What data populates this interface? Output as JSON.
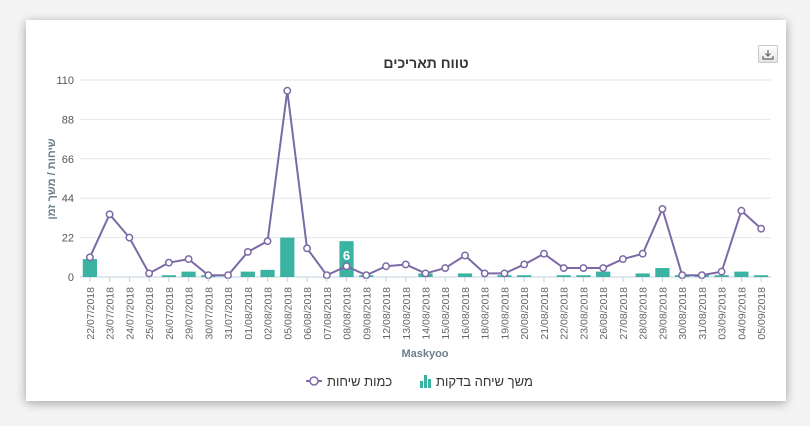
{
  "chart_data": {
    "type": "bar",
    "title": "טווח תאריכים",
    "xlabel": "Maskyoo",
    "ylabel": "שיחות / משך זמן",
    "ylim": [
      0,
      110
    ],
    "yticks": [
      0,
      22,
      44,
      66,
      88,
      110
    ],
    "grid": true,
    "legend": "bottom-center",
    "categories": [
      "22/07/2018",
      "23/07/2018",
      "24/07/2018",
      "25/07/2018",
      "26/07/2018",
      "29/07/2018",
      "30/07/2018",
      "31/07/2018",
      "01/08/2018",
      "02/08/2018",
      "05/08/2018",
      "06/08/2018",
      "07/08/2018",
      "08/08/2018",
      "09/08/2018",
      "12/08/2018",
      "13/08/2018",
      "14/08/2018",
      "15/08/2018",
      "16/08/2018",
      "18/08/2018",
      "19/08/2018",
      "20/08/2018",
      "21/08/2018",
      "22/08/2018",
      "23/08/2018",
      "26/08/2018",
      "27/08/2018",
      "28/08/2018",
      "29/08/2018",
      "30/08/2018",
      "31/08/2018",
      "03/09/2018",
      "04/09/2018",
      "05/09/2018"
    ],
    "series": [
      {
        "name": "משך שיחה בדקות",
        "type": "bar",
        "color": "#3bb3a3",
        "values": [
          10,
          0,
          0,
          0,
          1,
          3,
          1,
          0,
          3,
          4,
          22,
          0,
          0,
          20,
          1,
          0,
          0,
          2,
          0,
          2,
          0,
          1,
          1,
          0,
          1,
          1,
          3,
          0,
          2,
          5,
          1,
          1,
          1,
          3,
          1
        ]
      },
      {
        "name": "כמות שיחות",
        "type": "line",
        "color": "#7c6aa6",
        "values": [
          11,
          35,
          22,
          2,
          8,
          10,
          1,
          1,
          14,
          20,
          104,
          16,
          1,
          6,
          1,
          6,
          7,
          2,
          5,
          12,
          2,
          2,
          7,
          13,
          5,
          5,
          5,
          10,
          13,
          38,
          1,
          1,
          3,
          37,
          27
        ]
      }
    ],
    "data_label": {
      "category": "08/08/2018",
      "text": "6"
    }
  },
  "toolbar": {
    "export_icon": "download-icon"
  }
}
